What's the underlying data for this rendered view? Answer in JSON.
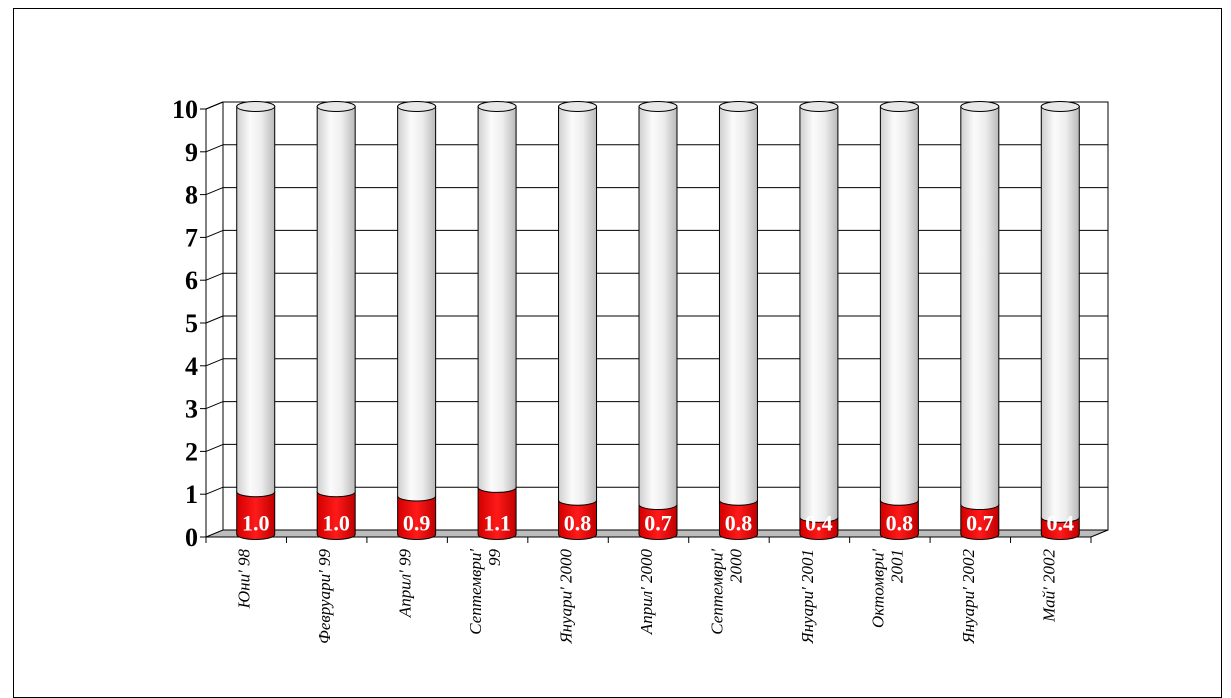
{
  "chart_data": {
    "type": "bar",
    "title": "",
    "xlabel": "",
    "ylabel": "",
    "ylim": [
      0,
      10
    ],
    "yticks": [
      "0",
      "1",
      "2",
      "3",
      "4",
      "5",
      "6",
      "7",
      "8",
      "9",
      "10"
    ],
    "categories": [
      [
        "Юни' 98"
      ],
      [
        "Февруари' 99"
      ],
      [
        "Април' 99"
      ],
      [
        "Септември'",
        "99"
      ],
      [
        "Януари' 2000"
      ],
      [
        "Април' 2000"
      ],
      [
        "Септември'",
        "2000"
      ],
      [
        "Януари' 2001"
      ],
      [
        "Октомври'",
        "2001"
      ],
      [
        "Януари' 2002"
      ],
      [
        "Май' 2002"
      ]
    ],
    "series": [
      {
        "values": [
          1.0,
          1.0,
          0.9,
          1.1,
          0.8,
          0.7,
          0.8,
          0.4,
          0.8,
          0.7,
          0.4
        ],
        "color": "#e00000"
      },
      {
        "values": [
          9.0,
          9.0,
          9.1,
          8.9,
          9.2,
          9.3,
          9.2,
          9.6,
          9.2,
          9.3,
          9.6
        ],
        "color": "#e6e6e6"
      }
    ],
    "data_labels": [
      "1.0",
      "1.0",
      "0.9",
      "1.1",
      "0.8",
      "0.7",
      "0.8",
      "0.4",
      "0.8",
      "0.7",
      "0.4"
    ],
    "grid": true,
    "legend": "none"
  }
}
